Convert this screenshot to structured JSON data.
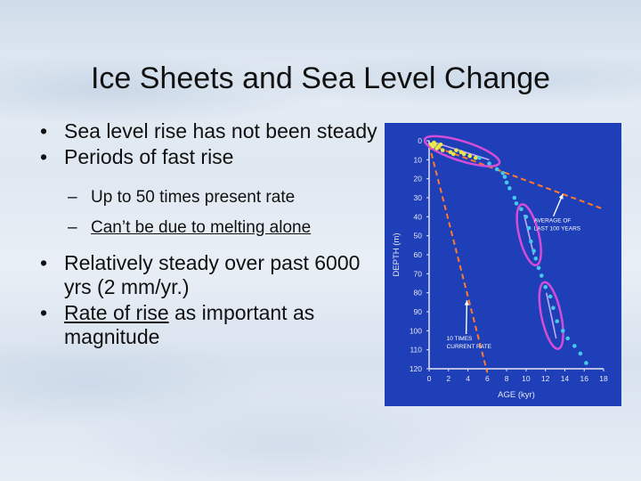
{
  "slide": {
    "title": "Ice Sheets and Sea Level Change",
    "bullets": [
      {
        "text": "Sea level rise has not been steady"
      },
      {
        "text": "Periods of fast rise",
        "sub": [
          {
            "text": "Up to 50 times present rate"
          },
          {
            "text": "Can’t be due to melting alone"
          }
        ]
      },
      {
        "text": "Relatively steady over past 6000 yrs (2 mm/yr.)"
      },
      {
        "text_underlined": "Rate of rise",
        "text_rest": " as important as magnitude"
      }
    ]
  },
  "colors": {
    "panel": "#1f3fb8",
    "axis": "#e6e6f2",
    "yellow_points": "#e8e84a",
    "cyan_points": "#46c8ea",
    "dashed_line": "#ff7a2a",
    "highlight_ellipse": "#d44dd6",
    "connector_line": "#c9a8f0"
  },
  "chart_data": {
    "type": "scatter",
    "xlabel": "AGE (kyr)",
    "ylabel": "DEPTH (m)",
    "xlim": [
      0,
      18
    ],
    "ylim": [
      0,
      120
    ],
    "y_inverted": true,
    "xticks": [
      "0",
      "2",
      "4",
      "6",
      "8",
      "10",
      "12",
      "14",
      "16",
      "18"
    ],
    "yticks": [
      "0",
      "10",
      "20",
      "30",
      "40",
      "50",
      "60",
      "70",
      "80",
      "90",
      "100",
      "110",
      "120"
    ],
    "series": [
      {
        "points": [
          {
            "x": 0.2,
            "y": 2
          },
          {
            "x": 0.4,
            "y": 3
          },
          {
            "x": 0.6,
            "y": 2
          },
          {
            "x": 0.8,
            "y": 4
          },
          {
            "x": 1.0,
            "y": 3
          },
          {
            "x": 1.2,
            "y": 2
          },
          {
            "x": 1.4,
            "y": 5
          },
          {
            "x": 0.5,
            "y": 1
          },
          {
            "x": 2.2,
            "y": 6
          },
          {
            "x": 2.5,
            "y": 7
          },
          {
            "x": 2.8,
            "y": 5
          },
          {
            "x": 3.3,
            "y": 6
          },
          {
            "x": 3.6,
            "y": 7
          },
          {
            "x": 4.2,
            "y": 8
          },
          {
            "x": 4.8,
            "y": 9
          }
        ]
      },
      {
        "points": [
          {
            "x": 5.2,
            "y": 9
          },
          {
            "x": 6.2,
            "y": 12
          },
          {
            "x": 7.0,
            "y": 15
          },
          {
            "x": 7.6,
            "y": 17
          },
          {
            "x": 7.8,
            "y": 19
          },
          {
            "x": 8.0,
            "y": 22
          },
          {
            "x": 8.3,
            "y": 25
          },
          {
            "x": 8.8,
            "y": 30
          },
          {
            "x": 9.0,
            "y": 33
          },
          {
            "x": 9.5,
            "y": 36
          },
          {
            "x": 10.0,
            "y": 40
          },
          {
            "x": 10.3,
            "y": 46
          },
          {
            "x": 10.5,
            "y": 53
          },
          {
            "x": 10.8,
            "y": 58
          },
          {
            "x": 11.0,
            "y": 62
          },
          {
            "x": 11.3,
            "y": 67
          },
          {
            "x": 11.6,
            "y": 71
          },
          {
            "x": 12.0,
            "y": 77
          },
          {
            "x": 12.5,
            "y": 82
          },
          {
            "x": 12.8,
            "y": 88
          },
          {
            "x": 13.2,
            "y": 95
          },
          {
            "x": 13.8,
            "y": 100
          },
          {
            "x": 14.3,
            "y": 104
          },
          {
            "x": 15.0,
            "y": 108
          },
          {
            "x": 15.6,
            "y": 112
          },
          {
            "x": 16.2,
            "y": 117
          }
        ]
      }
    ],
    "reference_lines": [
      {
        "label": "AVERAGE OF LAST 100 YEARS",
        "from": [
          0,
          2
        ],
        "to": [
          18,
          36
        ]
      },
      {
        "label": "10 TIMES CURRENT RATE",
        "from": [
          0,
          2
        ],
        "to": [
          6,
          122
        ]
      }
    ],
    "highlighted_segments": [
      {
        "from": [
          0.6,
          1
        ],
        "to": [
          6.2,
          10
        ]
      },
      {
        "from": [
          9.8,
          39
        ],
        "to": [
          10.8,
          60
        ]
      },
      {
        "from": [
          12.1,
          80
        ],
        "to": [
          13.1,
          104
        ]
      }
    ],
    "annotations": [
      {
        "text_lines": [
          "AVERAGE OF",
          "LAST 100 YEARS"
        ],
        "x": 10.8,
        "y": 43,
        "arrow_to": [
          13.8,
          28
        ]
      },
      {
        "text_lines": [
          "10 TIMES",
          "CURRENT RATE"
        ],
        "x": 1.8,
        "y": 105,
        "arrow_to": [
          3.9,
          84
        ]
      }
    ]
  }
}
